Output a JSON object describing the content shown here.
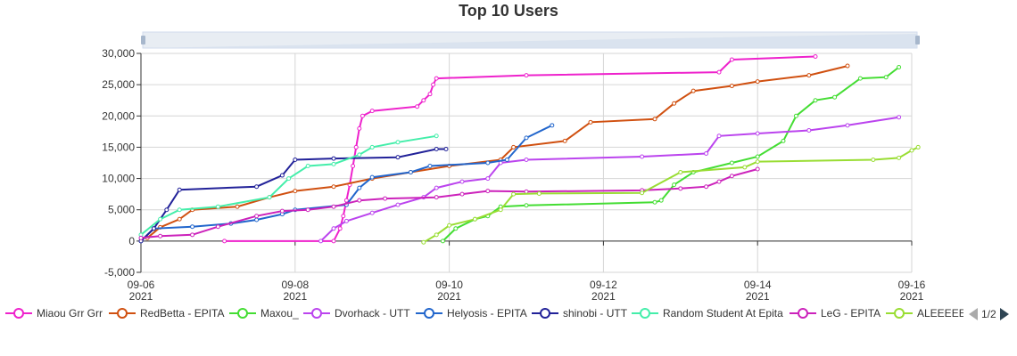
{
  "chart_data": {
    "type": "line",
    "title": "Top 10 Users",
    "xlabel": "",
    "ylabel": "",
    "x_axis_type": "time",
    "xlim": [
      "2021-09-06 00:00",
      "2021-09-16 00:00"
    ],
    "x_ticks": [
      {
        "value": "2021-09-06 00:00",
        "label": "09-06",
        "sublabel": "2021"
      },
      {
        "value": "2021-09-08 00:00",
        "label": "09-08",
        "sublabel": "2021"
      },
      {
        "value": "2021-09-10 00:00",
        "label": "09-10",
        "sublabel": "2021"
      },
      {
        "value": "2021-09-12 00:00",
        "label": "09-12",
        "sublabel": "2021"
      },
      {
        "value": "2021-09-14 00:00",
        "label": "09-14",
        "sublabel": "2021"
      },
      {
        "value": "2021-09-16 00:00",
        "label": "09-16",
        "sublabel": "2021"
      }
    ],
    "ylim": [
      -5000,
      30000
    ],
    "y_ticks": [
      {
        "value": -5000,
        "label": "-5,000"
      },
      {
        "value": 0,
        "label": "0"
      },
      {
        "value": 5000,
        "label": "5,000"
      },
      {
        "value": 10000,
        "label": "10,000"
      },
      {
        "value": 15000,
        "label": "15,000"
      },
      {
        "value": 20000,
        "label": "20,000"
      },
      {
        "value": 25000,
        "label": "25,000"
      },
      {
        "value": 30000,
        "label": "30,000"
      }
    ],
    "grid": true,
    "legend_position": "bottom",
    "data_zoom_slider": true,
    "legend_page": "1/2",
    "series": [
      {
        "name": "Miaou Grr Grr",
        "color": "#ee22cc",
        "points": [
          [
            "2021-09-07 02:00",
            0
          ],
          [
            "2021-09-08 12:00",
            0
          ],
          [
            "2021-09-08 14:00",
            2000
          ],
          [
            "2021-09-08 15:00",
            4000
          ],
          [
            "2021-09-08 16:00",
            6500
          ],
          [
            "2021-09-08 17:00",
            9000
          ],
          [
            "2021-09-08 18:00",
            12000
          ],
          [
            "2021-09-08 19:00",
            15000
          ],
          [
            "2021-09-08 20:00",
            18000
          ],
          [
            "2021-09-08 21:00",
            20000
          ],
          [
            "2021-09-09 00:00",
            20800
          ],
          [
            "2021-09-09 14:00",
            21500
          ],
          [
            "2021-09-09 16:00",
            22500
          ],
          [
            "2021-09-09 18:00",
            23500
          ],
          [
            "2021-09-09 19:00",
            25000
          ],
          [
            "2021-09-09 20:00",
            26000
          ],
          [
            "2021-09-11 00:00",
            26500
          ],
          [
            "2021-09-13 12:00",
            27000
          ],
          [
            "2021-09-13 16:00",
            29000
          ],
          [
            "2021-09-14 18:00",
            29500
          ]
        ]
      },
      {
        "name": "RedBetta - EPITA",
        "color": "#d05010",
        "points": [
          [
            "2021-09-06 02:00",
            500
          ],
          [
            "2021-09-06 06:00",
            2200
          ],
          [
            "2021-09-06 12:00",
            3500
          ],
          [
            "2021-09-06 16:00",
            5000
          ],
          [
            "2021-09-07 06:00",
            5500
          ],
          [
            "2021-09-07 16:00",
            7000
          ],
          [
            "2021-09-08 00:00",
            8000
          ],
          [
            "2021-09-08 12:00",
            8700
          ],
          [
            "2021-09-09 00:00",
            10000
          ],
          [
            "2021-09-09 12:00",
            11000
          ],
          [
            "2021-09-10 00:00",
            12000
          ],
          [
            "2021-09-10 16:00",
            13000
          ],
          [
            "2021-09-10 20:00",
            15000
          ],
          [
            "2021-09-11 12:00",
            16000
          ],
          [
            "2021-09-11 20:00",
            19000
          ],
          [
            "2021-09-12 16:00",
            19500
          ],
          [
            "2021-09-12 22:00",
            22000
          ],
          [
            "2021-09-13 04:00",
            24000
          ],
          [
            "2021-09-13 16:00",
            24800
          ],
          [
            "2021-09-14 00:00",
            25500
          ],
          [
            "2021-09-14 16:00",
            26500
          ],
          [
            "2021-09-15 04:00",
            28000
          ]
        ]
      },
      {
        "name": "Maxou_",
        "color": "#44dd33",
        "points": [
          [
            "2021-09-09 22:00",
            0
          ],
          [
            "2021-09-10 02:00",
            2000
          ],
          [
            "2021-09-10 08:00",
            3500
          ],
          [
            "2021-09-10 12:00",
            4000
          ],
          [
            "2021-09-10 16:00",
            5500
          ],
          [
            "2021-09-11 00:00",
            5700
          ],
          [
            "2021-09-12 16:00",
            6200
          ],
          [
            "2021-09-12 18:00",
            6500
          ],
          [
            "2021-09-12 22:00",
            9000
          ],
          [
            "2021-09-13 04:00",
            11000
          ],
          [
            "2021-09-13 16:00",
            12500
          ],
          [
            "2021-09-14 00:00",
            13500
          ],
          [
            "2021-09-14 08:00",
            16000
          ],
          [
            "2021-09-14 12:00",
            20000
          ],
          [
            "2021-09-14 18:00",
            22500
          ],
          [
            "2021-09-15 00:00",
            23000
          ],
          [
            "2021-09-15 08:00",
            26000
          ],
          [
            "2021-09-15 16:00",
            26200
          ],
          [
            "2021-09-15 20:00",
            27800
          ]
        ]
      },
      {
        "name": "Dvorhack - UTT",
        "color": "#bb44ee",
        "points": [
          [
            "2021-09-08 08:00",
            0
          ],
          [
            "2021-09-08 12:00",
            2000
          ],
          [
            "2021-09-08 16:00",
            3200
          ],
          [
            "2021-09-09 00:00",
            4500
          ],
          [
            "2021-09-09 08:00",
            5800
          ],
          [
            "2021-09-09 16:00",
            7000
          ],
          [
            "2021-09-09 20:00",
            8500
          ],
          [
            "2021-09-10 04:00",
            9500
          ],
          [
            "2021-09-10 12:00",
            10000
          ],
          [
            "2021-09-10 16:00",
            12500
          ],
          [
            "2021-09-11 00:00",
            13000
          ],
          [
            "2021-09-12 12:00",
            13500
          ],
          [
            "2021-09-13 08:00",
            14000
          ],
          [
            "2021-09-13 12:00",
            16800
          ],
          [
            "2021-09-14 00:00",
            17200
          ],
          [
            "2021-09-14 16:00",
            17700
          ],
          [
            "2021-09-15 04:00",
            18500
          ],
          [
            "2021-09-15 20:00",
            19800
          ]
        ]
      },
      {
        "name": "Helyosis - EPITA",
        "color": "#2266cc",
        "points": [
          [
            "2021-09-06 00:00",
            0
          ],
          [
            "2021-09-06 04:00",
            2000
          ],
          [
            "2021-09-06 16:00",
            2300
          ],
          [
            "2021-09-07 04:00",
            2800
          ],
          [
            "2021-09-07 12:00",
            3400
          ],
          [
            "2021-09-07 20:00",
            4300
          ],
          [
            "2021-09-08 00:00",
            5000
          ],
          [
            "2021-09-08 16:00",
            5800
          ],
          [
            "2021-09-08 20:00",
            8500
          ],
          [
            "2021-09-09 00:00",
            10200
          ],
          [
            "2021-09-09 12:00",
            11000
          ],
          [
            "2021-09-09 18:00",
            12000
          ],
          [
            "2021-09-10 12:00",
            12500
          ],
          [
            "2021-09-10 18:00",
            13000
          ],
          [
            "2021-09-11 00:00",
            16500
          ],
          [
            "2021-09-11 08:00",
            18500
          ]
        ]
      },
      {
        "name": "shinobi - UTT",
        "color": "#222299",
        "points": [
          [
            "2021-09-06 00:00",
            0
          ],
          [
            "2021-09-06 04:00",
            2000
          ],
          [
            "2021-09-06 08:00",
            5000
          ],
          [
            "2021-09-06 12:00",
            8200
          ],
          [
            "2021-09-07 12:00",
            8700
          ],
          [
            "2021-09-07 20:00",
            10500
          ],
          [
            "2021-09-08 00:00",
            13000
          ],
          [
            "2021-09-08 12:00",
            13200
          ],
          [
            "2021-09-09 08:00",
            13400
          ],
          [
            "2021-09-09 20:00",
            14700
          ],
          [
            "2021-09-09 23:00",
            14700
          ]
        ]
      },
      {
        "name": "Random Student At Epita",
        "color": "#44eeaa",
        "points": [
          [
            "2021-09-06 00:00",
            1000
          ],
          [
            "2021-09-06 06:00",
            3500
          ],
          [
            "2021-09-06 12:00",
            5000
          ],
          [
            "2021-09-07 00:00",
            5500
          ],
          [
            "2021-09-07 16:00",
            7000
          ],
          [
            "2021-09-07 22:00",
            10000
          ],
          [
            "2021-09-08 04:00",
            12000
          ],
          [
            "2021-09-08 12:00",
            12300
          ],
          [
            "2021-09-08 20:00",
            13800
          ],
          [
            "2021-09-09 00:00",
            15000
          ],
          [
            "2021-09-09 08:00",
            15800
          ],
          [
            "2021-09-09 20:00",
            16800
          ]
        ]
      },
      {
        "name": "LeG - EPITA",
        "color": "#cc22bb",
        "points": [
          [
            "2021-09-06 00:00",
            500
          ],
          [
            "2021-09-06 06:00",
            800
          ],
          [
            "2021-09-06 16:00",
            1000
          ],
          [
            "2021-09-07 00:00",
            2300
          ],
          [
            "2021-09-07 12:00",
            4000
          ],
          [
            "2021-09-07 20:00",
            4800
          ],
          [
            "2021-09-08 04:00",
            5000
          ],
          [
            "2021-09-08 12:00",
            5500
          ],
          [
            "2021-09-08 20:00",
            6500
          ],
          [
            "2021-09-09 04:00",
            6800
          ],
          [
            "2021-09-09 20:00",
            7000
          ],
          [
            "2021-09-10 04:00",
            7500
          ],
          [
            "2021-09-10 12:00",
            8000
          ],
          [
            "2021-09-11 00:00",
            7900
          ],
          [
            "2021-09-12 12:00",
            8100
          ],
          [
            "2021-09-13 00:00",
            8400
          ],
          [
            "2021-09-13 08:00",
            8700
          ],
          [
            "2021-09-13 12:00",
            9500
          ],
          [
            "2021-09-13 16:00",
            10400
          ],
          [
            "2021-09-14 00:00",
            11500
          ]
        ]
      },
      {
        "name": "ALEEEEEEE",
        "color": "#99dd33",
        "points": [
          [
            "2021-09-09 16:00",
            -200
          ],
          [
            "2021-09-09 20:00",
            1000
          ],
          [
            "2021-09-10 00:00",
            2500
          ],
          [
            "2021-09-10 08:00",
            3500
          ],
          [
            "2021-09-10 16:00",
            5000
          ],
          [
            "2021-09-10 20:00",
            7500
          ],
          [
            "2021-09-11 04:00",
            7600
          ],
          [
            "2021-09-12 12:00",
            7700
          ],
          [
            "2021-09-13 00:00",
            11000
          ],
          [
            "2021-09-13 20:00",
            11800
          ],
          [
            "2021-09-14 00:00",
            12700
          ],
          [
            "2021-09-15 12:00",
            13000
          ],
          [
            "2021-09-15 20:00",
            13300
          ],
          [
            "2021-09-16 00:00",
            14500
          ],
          [
            "2021-09-16 02:00",
            15000
          ]
        ]
      }
    ]
  },
  "legend": {
    "items": [
      {
        "label": "Miaou Grr Grr",
        "color": "#ee22cc"
      },
      {
        "label": "RedBetta - EPITA",
        "color": "#d05010"
      },
      {
        "label": "Maxou_",
        "color": "#44dd33"
      },
      {
        "label": "Dvorhack - UTT",
        "color": "#bb44ee"
      },
      {
        "label": "Helyosis - EPITA",
        "color": "#2266cc"
      },
      {
        "label": "shinobi - UTT",
        "color": "#222299"
      },
      {
        "label": "Random Student At Epita",
        "color": "#44eeaa"
      },
      {
        "label": "LeG - EPITA",
        "color": "#cc22bb"
      },
      {
        "label": "ALEEEEEEE",
        "color": "#99dd33"
      }
    ],
    "page_indicator": "1/2"
  }
}
